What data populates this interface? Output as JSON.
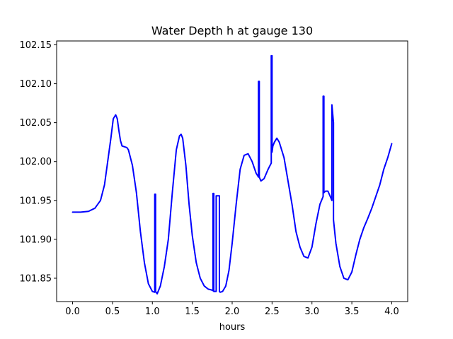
{
  "chart_data": {
    "type": "line",
    "title": "Water Depth h at gauge 130",
    "xlabel": "hours",
    "ylabel": "",
    "xlim": [
      -0.2,
      4.2
    ],
    "ylim": [
      101.82,
      102.155
    ],
    "grid": false,
    "xticks": [
      0.0,
      0.5,
      1.0,
      1.5,
      2.0,
      2.5,
      3.0,
      3.5,
      4.0
    ],
    "xtick_labels": [
      "0.0",
      "0.5",
      "1.0",
      "1.5",
      "2.0",
      "2.5",
      "3.0",
      "3.5",
      "4.0"
    ],
    "yticks": [
      101.85,
      101.9,
      101.95,
      102.0,
      102.05,
      102.1,
      102.15
    ],
    "ytick_labels": [
      "101.85",
      "101.90",
      "101.95",
      "102.00",
      "102.05",
      "102.10",
      "102.15"
    ],
    "series": [
      {
        "color": "#0000ff",
        "x": [
          0.0,
          0.1,
          0.2,
          0.28,
          0.35,
          0.4,
          0.44,
          0.48,
          0.51,
          0.54,
          0.56,
          0.58,
          0.6,
          0.62,
          0.65,
          0.68,
          0.7,
          0.75,
          0.8,
          0.85,
          0.9,
          0.95,
          1.0,
          1.03,
          1.03,
          1.04,
          1.04,
          1.06,
          1.1,
          1.15,
          1.2,
          1.25,
          1.3,
          1.34,
          1.36,
          1.38,
          1.42,
          1.46,
          1.5,
          1.55,
          1.6,
          1.65,
          1.7,
          1.74,
          1.76,
          1.76,
          1.77,
          1.77,
          1.8,
          1.8,
          1.84,
          1.84,
          1.85,
          1.88,
          1.92,
          1.96,
          2.0,
          2.05,
          2.1,
          2.15,
          2.2,
          2.25,
          2.3,
          2.33,
          2.33,
          2.34,
          2.34,
          2.36,
          2.4,
          2.45,
          2.49,
          2.49,
          2.5,
          2.5,
          2.51,
          2.53,
          2.56,
          2.59,
          2.62,
          2.65,
          2.7,
          2.75,
          2.8,
          2.85,
          2.9,
          2.95,
          3.0,
          3.05,
          3.1,
          3.14,
          3.14,
          3.15,
          3.15,
          3.17,
          3.2,
          3.23,
          3.25,
          3.25,
          3.27,
          3.27,
          3.3,
          3.35,
          3.4,
          3.45,
          3.5,
          3.55,
          3.6,
          3.65,
          3.7,
          3.75,
          3.8,
          3.85,
          3.9,
          3.95,
          4.0
        ],
        "y": [
          101.935,
          101.935,
          101.936,
          101.94,
          101.95,
          101.97,
          102.0,
          102.03,
          102.055,
          102.06,
          102.055,
          102.04,
          102.027,
          102.02,
          102.019,
          102.018,
          102.015,
          101.995,
          101.96,
          101.91,
          101.87,
          101.843,
          101.833,
          101.832,
          101.958,
          101.958,
          101.833,
          101.83,
          101.84,
          101.865,
          101.9,
          101.96,
          102.015,
          102.033,
          102.035,
          102.03,
          101.995,
          101.945,
          101.905,
          101.87,
          101.85,
          101.84,
          101.836,
          101.835,
          101.834,
          101.959,
          101.959,
          101.833,
          101.833,
          101.956,
          101.956,
          101.833,
          101.832,
          101.833,
          101.84,
          101.86,
          101.895,
          101.945,
          101.99,
          102.008,
          102.01,
          102.0,
          101.985,
          101.98,
          102.103,
          102.103,
          101.98,
          101.975,
          101.978,
          101.99,
          101.998,
          102.136,
          102.136,
          102.012,
          102.02,
          102.025,
          102.03,
          102.025,
          102.015,
          102.005,
          101.975,
          101.945,
          101.91,
          101.89,
          101.878,
          101.876,
          101.89,
          101.92,
          101.945,
          101.955,
          102.084,
          102.084,
          101.96,
          101.962,
          101.962,
          101.955,
          101.95,
          102.073,
          102.05,
          101.925,
          101.895,
          101.865,
          101.85,
          101.848,
          101.858,
          101.88,
          101.9,
          101.915,
          101.927,
          101.94,
          101.955,
          101.97,
          101.99,
          102.005,
          102.023
        ]
      }
    ]
  }
}
